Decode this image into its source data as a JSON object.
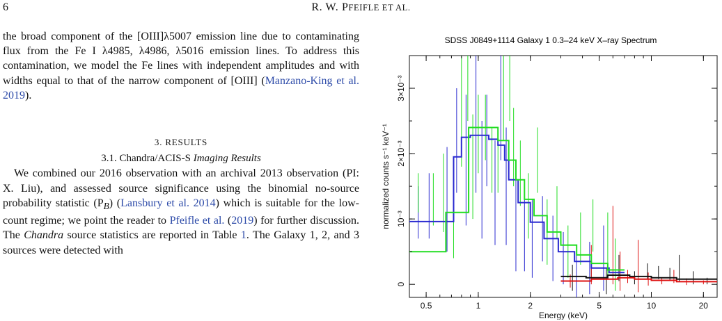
{
  "header": {
    "page_number": "6",
    "running_head_initials": "R. W. P",
    "running_head_rest": "FEIFLE ET AL."
  },
  "left_column": {
    "para1": {
      "t1": "the broad component of the [OIII]λ5007 emission line due to contaminating flux from the Fe I λ4985, λ4986, λ5016 emission lines. To address this contamination, we model the Fe lines with independent amplitudes and with widths equal to that of the narrow component of [OIII] (",
      "cite1": "Manzano-King et al. 2019",
      "t2": ")."
    },
    "section_title": "3. RESULTS",
    "subsection_prefix": "3.1. Chandra/ACIS-S ",
    "subsection_italic": "Imaging Results",
    "para2": {
      "t1": "We combined our 2016 observation with an archival 2013 observation (PI: X. Liu), and assessed source significance using the binomial no-source probability statistic (P",
      "sub": "B",
      "t2": ") (",
      "cite1": "Lansbury et al. 2014",
      "t3": ") which is suitable for the low-count regime; we point the reader to ",
      "cite2": "Pfeifle et al.",
      "t4": " (",
      "cite3": "2019",
      "t5": ") for further discussion. The ",
      "italic1": "Chandra",
      "t6": " source statistics are reported in Table ",
      "cite4": "1",
      "t7": ". The Galaxy 1, 2, and 3 sources were detected with"
    }
  },
  "chart_data": {
    "type": "line",
    "title": "SDSS J0849+1114 Galaxy 1 0.3–24 keV X–ray Spectrum",
    "xlabel": "Energy (keV)",
    "ylabel": "normalized counts s⁻¹ keV⁻¹",
    "x_scale": "log",
    "xlim": [
      0.4,
      24
    ],
    "ylim": [
      -0.0002,
      0.0035
    ],
    "x_ticks": [
      0.5,
      1,
      2,
      5,
      10,
      20
    ],
    "x_tick_labels": [
      "0.5",
      "1",
      "2",
      "5",
      "10",
      "20"
    ],
    "y_ticks": [
      0,
      0.001,
      0.002,
      0.003
    ],
    "y_tick_labels": [
      "0",
      "10⁻³",
      "2×10⁻³",
      "3×10⁻³"
    ],
    "series": [
      {
        "color": "#2a2ad0",
        "model": [
          [
            0.4,
            0.00096
          ],
          [
            0.72,
            0.00096
          ],
          [
            0.72,
            0.00195
          ],
          [
            0.8,
            0.00195
          ],
          [
            0.8,
            0.00225
          ],
          [
            0.9,
            0.00225
          ],
          [
            0.9,
            0.00228
          ],
          [
            1.15,
            0.00228
          ],
          [
            1.15,
            0.00222
          ],
          [
            1.3,
            0.00222
          ],
          [
            1.3,
            0.00213
          ],
          [
            1.42,
            0.00213
          ],
          [
            1.42,
            0.0019
          ],
          [
            1.5,
            0.0019
          ],
          [
            1.5,
            0.0016
          ],
          [
            1.7,
            0.0016
          ],
          [
            1.7,
            0.00125
          ],
          [
            2.0,
            0.00125
          ],
          [
            2.0,
            0.00095
          ],
          [
            2.4,
            0.00095
          ],
          [
            2.4,
            0.0007
          ],
          [
            2.9,
            0.0007
          ],
          [
            2.9,
            0.0005
          ],
          [
            3.6,
            0.0005
          ],
          [
            3.6,
            0.00035
          ],
          [
            4.5,
            0.00035
          ],
          [
            4.5,
            0.00025
          ],
          [
            5.7,
            0.00025
          ],
          [
            5.7,
            0.00018
          ],
          [
            7,
            0.00018
          ]
        ],
        "points": [
          [
            0.45,
            0.0011,
            0.0003,
            0.0004
          ],
          [
            0.52,
            0.0012,
            0.0005,
            0.0005
          ],
          [
            0.66,
            0.0013,
            0.0006,
            0.0008
          ],
          [
            0.75,
            0.0022,
            0.0005,
            0.0008
          ],
          [
            0.85,
            0.0019,
            0.0006,
            0.001
          ],
          [
            0.97,
            0.0025,
            0.0004,
            0.0011
          ],
          [
            1.05,
            0.0016,
            0.0005,
            0.0009
          ],
          [
            1.12,
            0.0022,
            0.0004,
            0.0007
          ],
          [
            1.25,
            0.0014,
            0.0004,
            0.0008
          ],
          [
            1.35,
            0.0028,
            0.0005,
            0.0009
          ],
          [
            1.45,
            0.0015,
            0.0006,
            0.0009
          ],
          [
            1.65,
            0.001,
            0.0006,
            0.0008
          ],
          [
            1.85,
            0.0008,
            0.0005,
            0.0006
          ],
          [
            2.05,
            0.0007,
            0.0005,
            0.0006
          ],
          [
            2.35,
            0.00085,
            0.0004,
            0.0005
          ],
          [
            2.7,
            0.00055,
            0.0005,
            0.0005
          ],
          [
            3.1,
            0.0004,
            0.0004,
            0.0004
          ],
          [
            3.7,
            0.0002,
            0.0004,
            0.0004
          ],
          [
            4.4,
            0.00025,
            0.0006,
            0.0004
          ],
          [
            5.3,
            0.0004,
            0.0004,
            0.0005
          ]
        ]
      },
      {
        "color": "#22dd22",
        "model": [
          [
            0.4,
            0.0005
          ],
          [
            0.65,
            0.0005
          ],
          [
            0.65,
            0.0011
          ],
          [
            0.88,
            0.0011
          ],
          [
            0.88,
            0.0024
          ],
          [
            1.3,
            0.0024
          ],
          [
            1.3,
            0.0022
          ],
          [
            1.5,
            0.0022
          ],
          [
            1.5,
            0.0019
          ],
          [
            1.65,
            0.0019
          ],
          [
            1.65,
            0.0016
          ],
          [
            1.85,
            0.0016
          ],
          [
            1.85,
            0.0013
          ],
          [
            2.1,
            0.0013
          ],
          [
            2.1,
            0.00105
          ],
          [
            2.5,
            0.00105
          ],
          [
            2.5,
            0.0008
          ],
          [
            3.0,
            0.0008
          ],
          [
            3.0,
            0.0006
          ],
          [
            3.7,
            0.0006
          ],
          [
            3.7,
            0.00045
          ],
          [
            4.5,
            0.00045
          ],
          [
            4.5,
            0.00032
          ],
          [
            5.6,
            0.00032
          ],
          [
            5.6,
            0.00022
          ],
          [
            7,
            0.00022
          ]
        ],
        "points": [
          [
            0.45,
            0.0014,
            0.0003,
            0.0003
          ],
          [
            0.55,
            0.0013,
            0.0004,
            0.0004
          ],
          [
            0.63,
            0.0014,
            0.0006,
            0.0006
          ],
          [
            0.72,
            0.0009,
            0.0005,
            0.0005
          ],
          [
            0.8,
            0.0028,
            0.0008,
            0.001
          ],
          [
            0.87,
            0.0031,
            0.0006,
            0.0006
          ],
          [
            0.93,
            0.0018,
            0.0004,
            0.0008
          ],
          [
            1.0,
            0.0023,
            0.0005,
            0.0006
          ],
          [
            1.1,
            0.0024,
            0.0005,
            0.0005
          ],
          [
            1.2,
            0.0019,
            0.0005,
            0.0005
          ],
          [
            1.3,
            0.0018,
            0.0005,
            0.0004
          ],
          [
            1.4,
            0.0032,
            0.0005,
            0.001
          ],
          [
            1.52,
            0.0033,
            0.0004,
            0.0008
          ],
          [
            1.6,
            0.0021,
            0.0006,
            0.0006
          ],
          [
            1.75,
            0.0017,
            0.0005,
            0.0005
          ],
          [
            1.95,
            0.0012,
            0.0005,
            0.0005
          ],
          [
            2.2,
            0.0019,
            0.0005,
            0.0005
          ],
          [
            2.5,
            0.0008,
            0.0004,
            0.0005
          ],
          [
            2.85,
            0.0011,
            0.0004,
            0.0004
          ],
          [
            3.3,
            0.0005,
            0.0004,
            0.0004
          ],
          [
            3.9,
            0.0007,
            0.0004,
            0.0004
          ],
          [
            4.6,
            0.0009,
            0.0004,
            0.0004
          ],
          [
            5.6,
            0.0006,
            0.0006,
            0.0005
          ],
          [
            6.2,
            0.0003,
            0.0004,
            0.0004
          ]
        ]
      },
      {
        "color": "#111111",
        "model": [
          [
            3,
            0.00012
          ],
          [
            4.2,
            0.00012
          ],
          [
            4.2,
            0.0001
          ],
          [
            5.6,
            0.0001
          ],
          [
            5.6,
            0.00014
          ],
          [
            7.5,
            0.00014
          ],
          [
            7.5,
            0.00012
          ],
          [
            10,
            0.00012
          ],
          [
            10,
            0.0001
          ],
          [
            14,
            0.0001
          ],
          [
            14,
            8e-05
          ],
          [
            24,
            8e-05
          ]
        ],
        "points": [
          [
            3.5,
            0.0001,
            0.0002,
            0.0002
          ],
          [
            4.5,
            0.0002,
            0.0002,
            0.0001
          ],
          [
            5.5,
            5e-05,
            0.0002,
            0.0002
          ],
          [
            6.5,
            0.00025,
            0.0002,
            0.0002
          ],
          [
            8,
            0.0001,
            0.0002,
            0.0001
          ],
          [
            9.5,
            0.0002,
            0.00012,
            0.00012
          ],
          [
            11,
            0.00018,
            0.0001,
            0.0001
          ],
          [
            12.8,
            0.00015,
            0.0001,
            0.0001
          ],
          [
            14.5,
            0.00025,
            0.0002,
            0.0002
          ],
          [
            17.5,
            0.0001,
            0.0001,
            0.0001
          ],
          [
            21,
            5e-05,
            0.0001,
            5e-05
          ]
        ]
      },
      {
        "color": "#dd1111",
        "model": [
          [
            3,
            5e-05
          ],
          [
            4.5,
            5e-05
          ],
          [
            4.5,
            8e-05
          ],
          [
            6.4,
            8e-05
          ],
          [
            6.4,
            0.0001
          ],
          [
            8,
            0.0001
          ],
          [
            8,
            8e-05
          ],
          [
            10,
            8e-05
          ],
          [
            10,
            6e-05
          ],
          [
            14,
            6e-05
          ],
          [
            14,
            4e-05
          ],
          [
            24,
            4e-05
          ]
        ],
        "points": [
          [
            3.4,
            5e-05,
            0.0001,
            0.0001
          ],
          [
            4.5,
            0.0003,
            0.0003,
            0.0003
          ],
          [
            6.0,
            0.0006,
            0.0006,
            0.0006
          ],
          [
            6.6,
            0.0002,
            0.0003,
            0.0003
          ],
          [
            7.3,
            0.00012,
            0.0001,
            0.0001
          ],
          [
            8.4,
            0.00028,
            0.0003,
            0.0004
          ],
          [
            9.6,
            8e-05,
            0.0001,
            0.0001
          ],
          [
            11.5,
            5e-05,
            5e-05,
            5e-05
          ],
          [
            13.5,
            0.00012,
            0.0001,
            0.0001
          ],
          [
            16,
            4e-05,
            5e-05,
            5e-05
          ],
          [
            20,
            3e-05,
            3e-05,
            3e-05
          ]
        ]
      }
    ]
  }
}
